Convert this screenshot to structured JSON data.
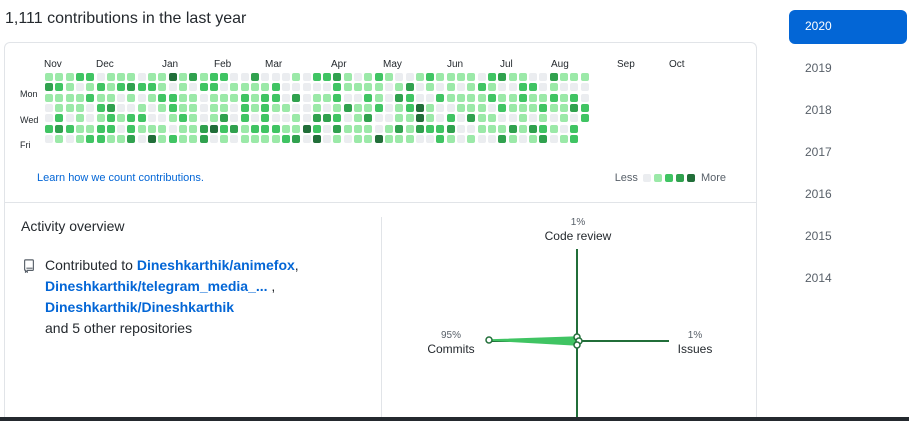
{
  "heading": "1,111 contributions in the last year",
  "months": [
    "Nov",
    "Dec",
    "Jan",
    "Feb",
    "Mar",
    "Apr",
    "May",
    "Jun",
    "Jul",
    "Aug",
    "Sep",
    "Oct"
  ],
  "days": [
    "Mon",
    "Wed",
    "Fri"
  ],
  "learn_link": "Learn how we count contributions.",
  "legend": {
    "less": "Less",
    "more": "More"
  },
  "colors": {
    "level0": "#ebedf0",
    "level1": "#9be9a8",
    "level2": "#40c463",
    "level3": "#30a14e",
    "level4": "#216e39",
    "accent": "#0366d6"
  },
  "activity": {
    "title": "Activity overview",
    "contributed_prefix": "Contributed to",
    "repos": [
      "Dineshkarthik/animefox",
      "Dineshkarthik/telegram_media_...",
      "Dineshkarthik/Dineshkarthik"
    ],
    "others": "and 5 other repositories"
  },
  "radar": {
    "code_review": {
      "pct": "1%",
      "label": "Code review"
    },
    "commits": {
      "pct": "95%",
      "label": "Commits"
    },
    "issues": {
      "pct": "1%",
      "label": "Issues"
    }
  },
  "years": [
    "2020",
    "2019",
    "2018",
    "2017",
    "2016",
    "2015",
    "2014"
  ],
  "selected_year": "2020"
}
